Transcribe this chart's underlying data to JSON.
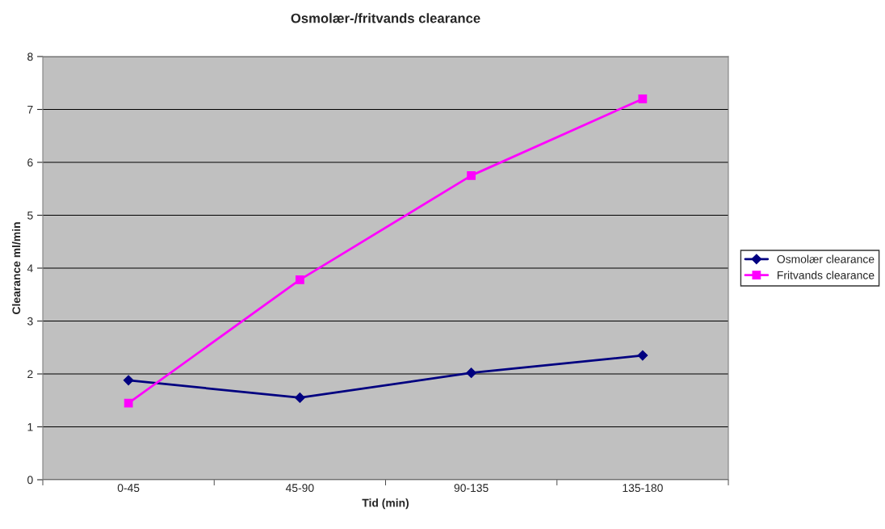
{
  "chart_data": {
    "type": "line",
    "title": "Osmolær-/fritvands clearance",
    "xlabel": "Tid (min)",
    "ylabel": "Clearance ml/min",
    "categories": [
      "0-45",
      "45-90",
      "90-135",
      "135-180"
    ],
    "series": [
      {
        "name": "Osmolær clearance",
        "color": "#000080",
        "marker": "diamond",
        "values": [
          1.88,
          1.55,
          2.02,
          2.35
        ]
      },
      {
        "name": "Fritvands clearance",
        "color": "#ff00ff",
        "marker": "square",
        "values": [
          1.45,
          3.78,
          5.75,
          7.2
        ]
      }
    ],
    "ylim": [
      0,
      8
    ],
    "yticks": [
      0,
      1,
      2,
      3,
      4,
      5,
      6,
      7,
      8
    ],
    "grid": "y",
    "legend": "right"
  }
}
